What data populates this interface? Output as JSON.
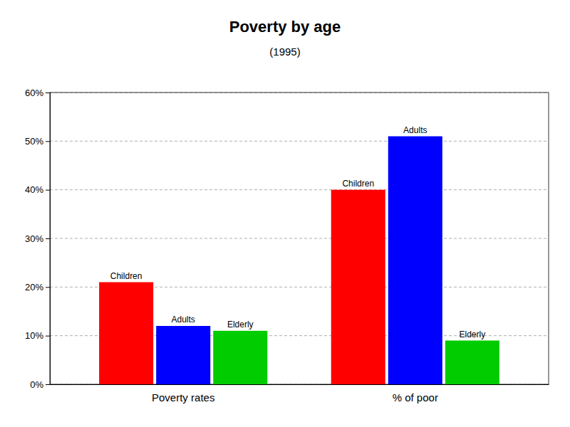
{
  "chart_data": {
    "type": "bar",
    "title": "Poverty by age",
    "subtitle": "(1995)",
    "categories": [
      "Poverty rates",
      "% of poor"
    ],
    "series": [
      {
        "name": "Children",
        "color": "#ff0000",
        "values": [
          21,
          40
        ]
      },
      {
        "name": "Adults",
        "color": "#0000ff",
        "values": [
          12,
          51
        ]
      },
      {
        "name": "Elderly",
        "color": "#00cc00",
        "values": [
          11,
          9
        ]
      }
    ],
    "ylim": [
      0,
      60
    ],
    "yticks": [
      {
        "value": 0,
        "label": "0%"
      },
      {
        "value": 10,
        "label": "10%"
      },
      {
        "value": 20,
        "label": "20%"
      },
      {
        "value": 30,
        "label": "30%"
      },
      {
        "value": 40,
        "label": "40%"
      },
      {
        "value": 50,
        "label": "50%"
      },
      {
        "value": 60,
        "label": "60%"
      }
    ],
    "grid": true
  }
}
